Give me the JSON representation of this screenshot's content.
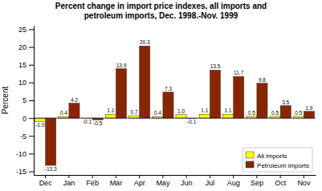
{
  "chart_data": {
    "type": "bar",
    "title": "Percent change in import price indexes, all imports and\npetroleum imports, Dec. 1998.-Nov. 1999",
    "ylabel": "Percent",
    "categories": [
      "Dec",
      "Jan",
      "Feb",
      "Mar",
      "Apr",
      "May",
      "Jun",
      "Jul",
      "Aug",
      "Sep",
      "Oct",
      "Nov"
    ],
    "series": [
      {
        "name": "All imports",
        "color": "#ffff00",
        "values": [
          -1.0,
          0.4,
          -0.1,
          1.1,
          0.7,
          0.4,
          1.0,
          1.1,
          1.1,
          0.5,
          0.5,
          0.5
        ],
        "value_labels": [
          "-1.0",
          "0.4",
          "-0.1",
          "1.1",
          "0.7",
          "0.4",
          "1.0",
          "1.1",
          "1.1",
          "0.5",
          "0.5",
          "0.5"
        ]
      },
      {
        "name": "Petroleum imports",
        "color": "#8B2500",
        "values": [
          -13.3,
          4.2,
          -0.5,
          13.9,
          20.3,
          7.3,
          -0.1,
          13.5,
          11.7,
          9.8,
          3.5,
          1.9
        ],
        "value_labels": [
          "-13.3",
          "4.2",
          "-0.5",
          "13.9",
          "20.3",
          "7.3",
          "-0.1",
          "13.5",
          "11.7",
          "9.8",
          "3.5",
          "1.9"
        ]
      }
    ],
    "ylim": [
      -16,
      26
    ],
    "yticks": [
      -15,
      -10,
      -5,
      0,
      5,
      10,
      15,
      20,
      25
    ],
    "grid": false,
    "legend": "lower right",
    "data_labels": true
  }
}
